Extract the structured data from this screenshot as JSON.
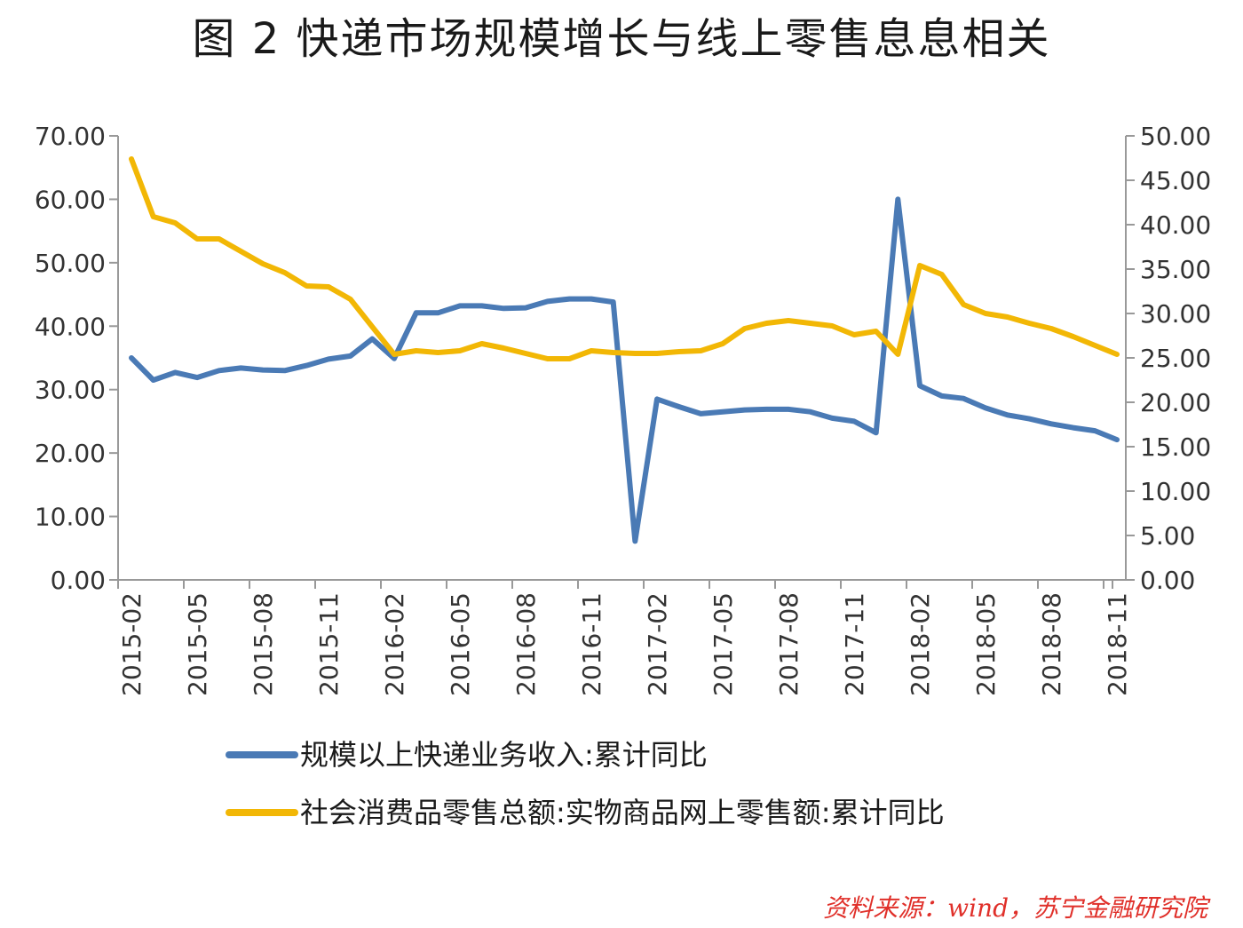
{
  "title": "图 2 快递市场规模增长与线上零售息息相关",
  "source_note": "资料来源：wind，苏宁金融研究院",
  "colors": {
    "series1": "#4a7ab5",
    "series2": "#f2b705",
    "axis": "#999999",
    "text": "#333333"
  },
  "chart_data": {
    "type": "line",
    "title": "图 2 快递市场规模增长与线上零售息息相关",
    "x": [
      "2015-02",
      "2015-03",
      "2015-04",
      "2015-05",
      "2015-06",
      "2015-07",
      "2015-08",
      "2015-09",
      "2015-10",
      "2015-11",
      "2015-12",
      "2016-01",
      "2016-02",
      "2016-03",
      "2016-04",
      "2016-05",
      "2016-06",
      "2016-07",
      "2016-08",
      "2016-09",
      "2016-10",
      "2016-11",
      "2016-12",
      "2017-01",
      "2017-02",
      "2017-03",
      "2017-04",
      "2017-05",
      "2017-06",
      "2017-07",
      "2017-08",
      "2017-09",
      "2017-10",
      "2017-11",
      "2017-12",
      "2018-01",
      "2018-02",
      "2018-03",
      "2018-04",
      "2018-05",
      "2018-06",
      "2018-07",
      "2018-08",
      "2018-09",
      "2018-10",
      "2018-11"
    ],
    "x_tick_labels": [
      "2015-02",
      "2015-05",
      "2015-08",
      "2015-11",
      "2016-02",
      "2016-05",
      "2016-08",
      "2016-11",
      "2017-02",
      "2017-05",
      "2017-08",
      "2017-11",
      "2018-02",
      "2018-05",
      "2018-08",
      "2018-11"
    ],
    "left_axis": {
      "ylim": [
        0,
        70
      ],
      "ticks": [
        "0.00",
        "10.00",
        "20.00",
        "30.00",
        "40.00",
        "50.00",
        "60.00",
        "70.00"
      ]
    },
    "right_axis": {
      "ylim": [
        0,
        50
      ],
      "ticks": [
        "0.00",
        "5.00",
        "10.00",
        "15.00",
        "20.00",
        "25.00",
        "30.00",
        "35.00",
        "40.00",
        "45.00",
        "50.00"
      ]
    },
    "legend_placement": "bottom",
    "grid": false,
    "series": [
      {
        "name": "规模以上快递业务收入:累计同比",
        "axis": "left",
        "color": "#4a7ab5",
        "values": [
          35.0,
          31.5,
          32.7,
          31.9,
          33.0,
          33.4,
          33.1,
          33.0,
          33.8,
          34.8,
          35.3,
          38.0,
          34.9,
          42.1,
          42.1,
          43.2,
          43.2,
          42.8,
          42.9,
          43.9,
          44.3,
          44.3,
          43.8,
          6.1,
          28.5,
          27.3,
          26.2,
          26.5,
          26.8,
          26.9,
          26.9,
          26.5,
          25.5,
          25.0,
          23.2,
          60.0,
          30.6,
          29.0,
          28.6,
          27.1,
          26.0,
          25.4,
          24.6,
          24.0,
          23.5,
          22.1
        ]
      },
      {
        "name": "社会消费品零售总额:实物商品网上零售额:累计同比",
        "axis": "right",
        "color": "#f2b705",
        "values": [
          47.4,
          40.9,
          40.2,
          38.4,
          38.4,
          37.0,
          35.6,
          34.6,
          33.1,
          33.0,
          31.6,
          28.5,
          25.4,
          25.8,
          25.6,
          25.8,
          26.6,
          26.1,
          25.5,
          24.9,
          24.9,
          25.8,
          25.6,
          25.5,
          25.5,
          25.7,
          25.8,
          26.6,
          28.3,
          28.9,
          29.2,
          28.9,
          28.6,
          27.6,
          28.0,
          25.4,
          35.4,
          34.4,
          31.0,
          30.0,
          29.6,
          28.9,
          28.3,
          27.4,
          26.4,
          25.4
        ]
      }
    ]
  }
}
